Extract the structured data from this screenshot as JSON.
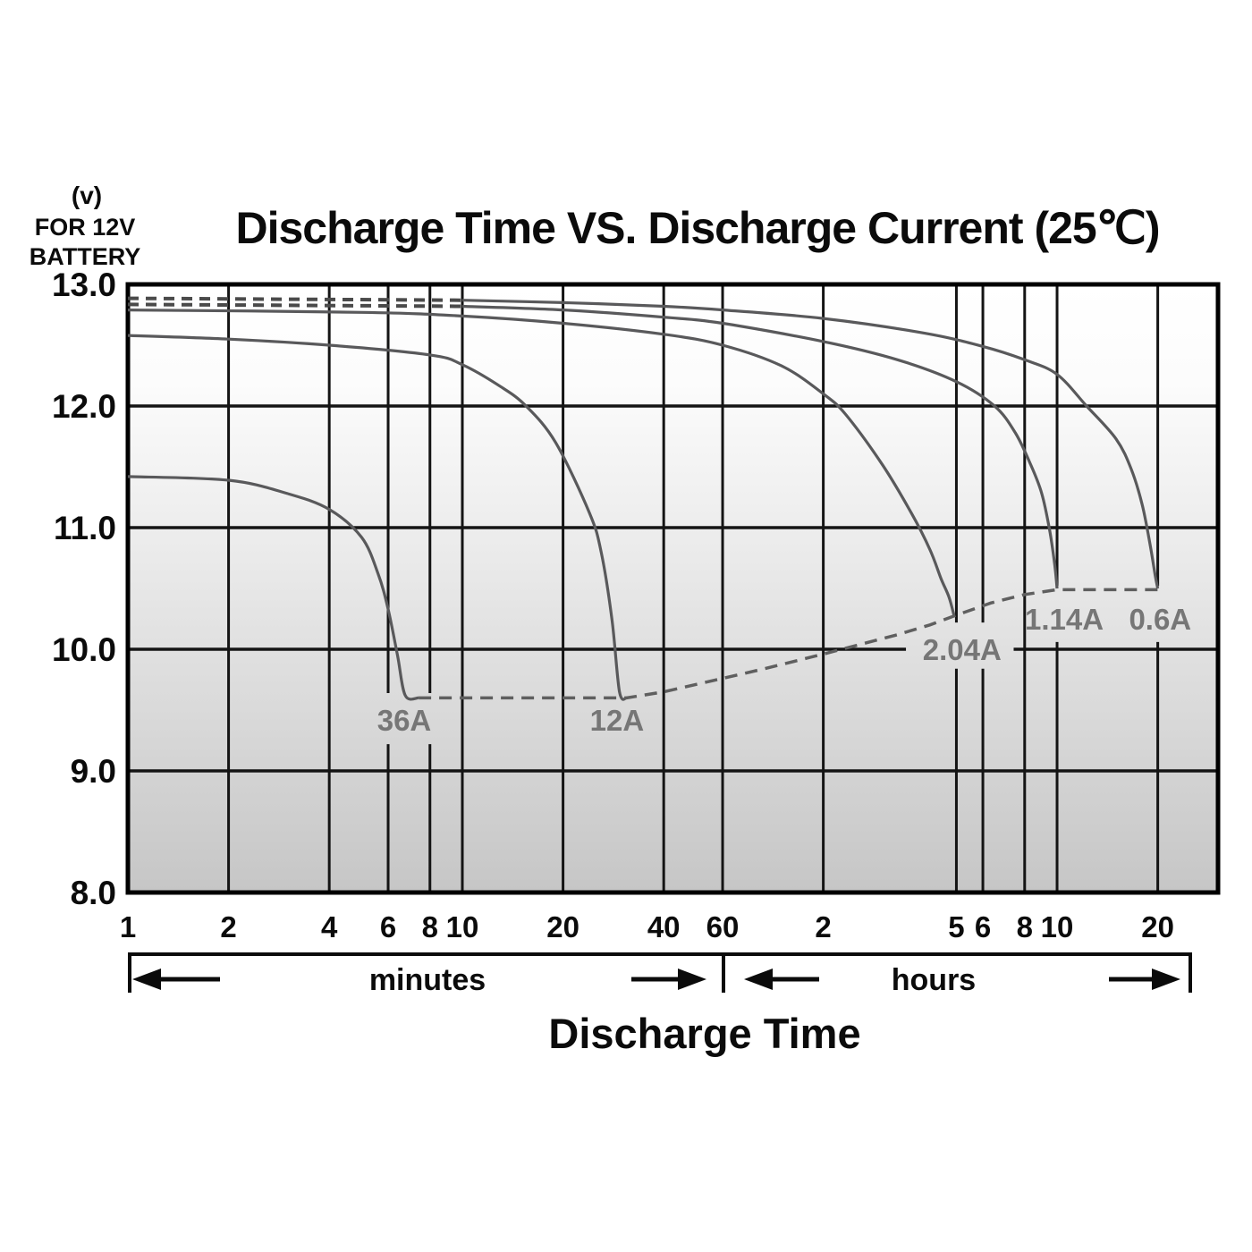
{
  "title": "Discharge Time VS. Discharge Current (25℃)",
  "y_axis_unit": {
    "line1": "(v)",
    "line2": "FOR 12V",
    "line3": "BATTERY"
  },
  "x_axis": {
    "title": "Discharge Time",
    "sections": [
      {
        "label": "minutes"
      },
      {
        "label": "hours"
      }
    ],
    "minute_ticks": [
      1,
      2,
      4,
      6,
      8,
      10,
      20,
      40,
      60
    ],
    "hour_ticks": [
      2,
      5,
      6,
      8,
      10,
      20
    ]
  },
  "y_axis": {
    "ticks": [
      "13.0",
      "12.0",
      "11.0",
      "10.0",
      "9.0",
      "8.0"
    ],
    "values": [
      13.0,
      12.0,
      11.0,
      10.0,
      9.0,
      8.0
    ]
  },
  "chart_data": {
    "type": "line",
    "x_scale": "log",
    "x_unit": "minutes",
    "x_range_minutes": [
      1,
      1820
    ],
    "ylim": [
      8.0,
      13.0
    ],
    "grid": true,
    "legend": "none",
    "background": "vertical gradient white to gray",
    "colors": {
      "curve": "#59595b",
      "grid": "#141414",
      "border": "#000000",
      "cutoff_dash": "#5f5f5f",
      "series_label": "#767676",
      "text": "#0b0b0b"
    },
    "series": [
      {
        "name": "36A",
        "label_at": {
          "t": 6.7,
          "v": 9.42
        },
        "points": [
          [
            1,
            11.42
          ],
          [
            2,
            11.39
          ],
          [
            3,
            11.28
          ],
          [
            4,
            11.15
          ],
          [
            5,
            10.92
          ],
          [
            5.6,
            10.62
          ],
          [
            6,
            10.33
          ],
          [
            6.4,
            9.95
          ],
          [
            6.75,
            9.62
          ],
          [
            7.4,
            9.6
          ]
        ]
      },
      {
        "name": "12A",
        "label_at": {
          "t": 29,
          "v": 9.42
        },
        "points": [
          [
            1,
            12.58
          ],
          [
            2,
            12.55
          ],
          [
            4,
            12.5
          ],
          [
            8,
            12.42
          ],
          [
            10,
            12.34
          ],
          [
            13,
            12.16
          ],
          [
            15.5,
            12.0
          ],
          [
            19,
            11.7
          ],
          [
            24,
            11.12
          ],
          [
            26,
            10.8
          ],
          [
            28,
            10.25
          ],
          [
            29.5,
            9.65
          ],
          [
            31,
            9.6
          ]
        ]
      },
      {
        "name": "2.04A",
        "label_at": {
          "t": 312,
          "v": 10.0
        },
        "points": [
          [
            1,
            12.79
          ],
          [
            5,
            12.77
          ],
          [
            10,
            12.74
          ],
          [
            20,
            12.68
          ],
          [
            40,
            12.59
          ],
          [
            60,
            12.5
          ],
          [
            90,
            12.33
          ],
          [
            120,
            12.1
          ],
          [
            140,
            11.93
          ],
          [
            180,
            11.52
          ],
          [
            220,
            11.12
          ],
          [
            250,
            10.82
          ],
          [
            270,
            10.58
          ],
          [
            285,
            10.43
          ],
          [
            295,
            10.28
          ]
        ]
      },
      {
        "name": "1.14A",
        "dash_until": 10,
        "label_at": {
          "t": 630,
          "v": 10.25
        },
        "points": [
          [
            1,
            12.835
          ],
          [
            10,
            12.82
          ],
          [
            20,
            12.79
          ],
          [
            40,
            12.73
          ],
          [
            60,
            12.68
          ],
          [
            120,
            12.53
          ],
          [
            200,
            12.38
          ],
          [
            300,
            12.2
          ],
          [
            390,
            12.0
          ],
          [
            450,
            11.78
          ],
          [
            500,
            11.52
          ],
          [
            540,
            11.28
          ],
          [
            570,
            10.98
          ],
          [
            590,
            10.7
          ],
          [
            600,
            10.5
          ]
        ]
      },
      {
        "name": "0.6A",
        "dash_until": 10,
        "label_at": {
          "t": 1220,
          "v": 10.25
        },
        "points": [
          [
            1,
            12.885
          ],
          [
            10,
            12.87
          ],
          [
            20,
            12.85
          ],
          [
            40,
            12.82
          ],
          [
            60,
            12.79
          ],
          [
            120,
            12.72
          ],
          [
            240,
            12.6
          ],
          [
            360,
            12.49
          ],
          [
            480,
            12.38
          ],
          [
            600,
            12.26
          ],
          [
            735,
            12.0
          ],
          [
            900,
            11.73
          ],
          [
            1000,
            11.48
          ],
          [
            1080,
            11.18
          ],
          [
            1140,
            10.85
          ],
          [
            1180,
            10.6
          ],
          [
            1200,
            10.5
          ]
        ]
      }
    ],
    "cutoff_line": {
      "style": "dashed",
      "points": [
        [
          7.4,
          9.6
        ],
        [
          31,
          9.6
        ],
        [
          40,
          9.65
        ],
        [
          60,
          9.76
        ],
        [
          80,
          9.84
        ],
        [
          120,
          9.96
        ],
        [
          160,
          10.05
        ],
        [
          200,
          10.12
        ],
        [
          250,
          10.2
        ],
        [
          300,
          10.28
        ],
        [
          380,
          10.38
        ],
        [
          480,
          10.45
        ],
        [
          600,
          10.49
        ],
        [
          1200,
          10.49
        ]
      ]
    },
    "gridline_gaps": {
      "vertical": [
        {
          "t": 6,
          "v_gap": [
            9.22,
            9.64
          ]
        },
        {
          "t": 8,
          "v_gap": [
            9.22,
            9.64
          ]
        },
        {
          "t": 300,
          "v_gap": [
            9.84,
            10.22
          ]
        },
        {
          "t": 360,
          "v_gap": [
            9.84,
            10.22
          ]
        },
        {
          "t": 600,
          "v_gap": [
            10.06,
            10.52
          ]
        },
        {
          "t": 1200,
          "v_gap": [
            10.06,
            10.52
          ]
        }
      ],
      "horizontal": [
        {
          "v": 10,
          "t_gap": [
            212,
            445
          ]
        }
      ]
    }
  }
}
